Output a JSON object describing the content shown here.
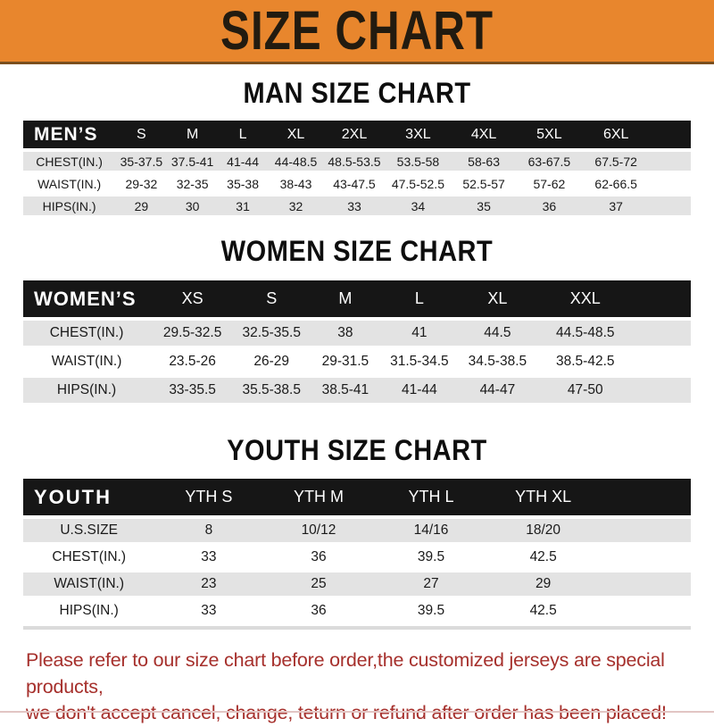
{
  "banner": {
    "title": "SIZE CHART"
  },
  "colors": {
    "banner_bg": "#E8862D",
    "table_header_bg": "#161616",
    "row_stripe_gray": "#E3E3E3",
    "footer_text_red": "#A6302C",
    "heading_text": "#0e0e0e"
  },
  "chart_data": [
    {
      "type": "table",
      "title": "MAN SIZE CHART",
      "header_label": "MEN’S",
      "columns": [
        "S",
        "M",
        "L",
        "XL",
        "2XL",
        "3XL",
        "4XL",
        "5XL",
        "6XL"
      ],
      "rows": [
        {
          "label": "CHEST(IN.)",
          "values": [
            "35-37.5",
            "37.5-41",
            "41-44",
            "44-48.5",
            "48.5-53.5",
            "53.5-58",
            "58-63",
            "63-67.5",
            "67.5-72"
          ]
        },
        {
          "label": "WAIST(IN.)",
          "values": [
            "29-32",
            "32-35",
            "35-38",
            "38-43",
            "43-47.5",
            "47.5-52.5",
            "52.5-57",
            "57-62",
            "62-66.5"
          ]
        },
        {
          "label": "HIPS(IN.)",
          "values": [
            "29",
            "30",
            "31",
            "32",
            "33",
            "34",
            "35",
            "36",
            "37"
          ]
        }
      ]
    },
    {
      "type": "table",
      "title": "WOMEN SIZE CHART",
      "header_label": "WOMEN’S",
      "columns": [
        "XS",
        "S",
        "M",
        "L",
        "XL",
        "XXL"
      ],
      "rows": [
        {
          "label": "CHEST(IN.)",
          "values": [
            "29.5-32.5",
            "32.5-35.5",
            "38",
            "41",
            "44.5",
            "44.5-48.5"
          ]
        },
        {
          "label": "WAIST(IN.)",
          "values": [
            "23.5-26",
            "26-29",
            "29-31.5",
            "31.5-34.5",
            "34.5-38.5",
            "38.5-42.5"
          ]
        },
        {
          "label": "HIPS(IN.)",
          "values": [
            "33-35.5",
            "35.5-38.5",
            "38.5-41",
            "41-44",
            "44-47",
            "47-50"
          ]
        }
      ]
    },
    {
      "type": "table",
      "title": "YOUTH SIZE CHART",
      "header_label": "YOUTH",
      "columns": [
        "YTH S",
        "YTH M",
        "YTH L",
        "YTH XL"
      ],
      "rows": [
        {
          "label": "U.S.SIZE",
          "values": [
            "8",
            "10/12",
            "14/16",
            "18/20"
          ]
        },
        {
          "label": "CHEST(IN.)",
          "values": [
            "33",
            "36",
            "39.5",
            "42.5"
          ]
        },
        {
          "label": "WAIST(IN.)",
          "values": [
            "23",
            "25",
            "27",
            "29"
          ]
        },
        {
          "label": "HIPS(IN.)",
          "values": [
            "33",
            "36",
            "39.5",
            "42.5"
          ]
        }
      ]
    }
  ],
  "footer": {
    "line1": "Please refer to our size chart before order,the customized jerseys are special products,",
    "line2": "we don't accept cancel, change, teturn or refund after order has been placed!"
  }
}
